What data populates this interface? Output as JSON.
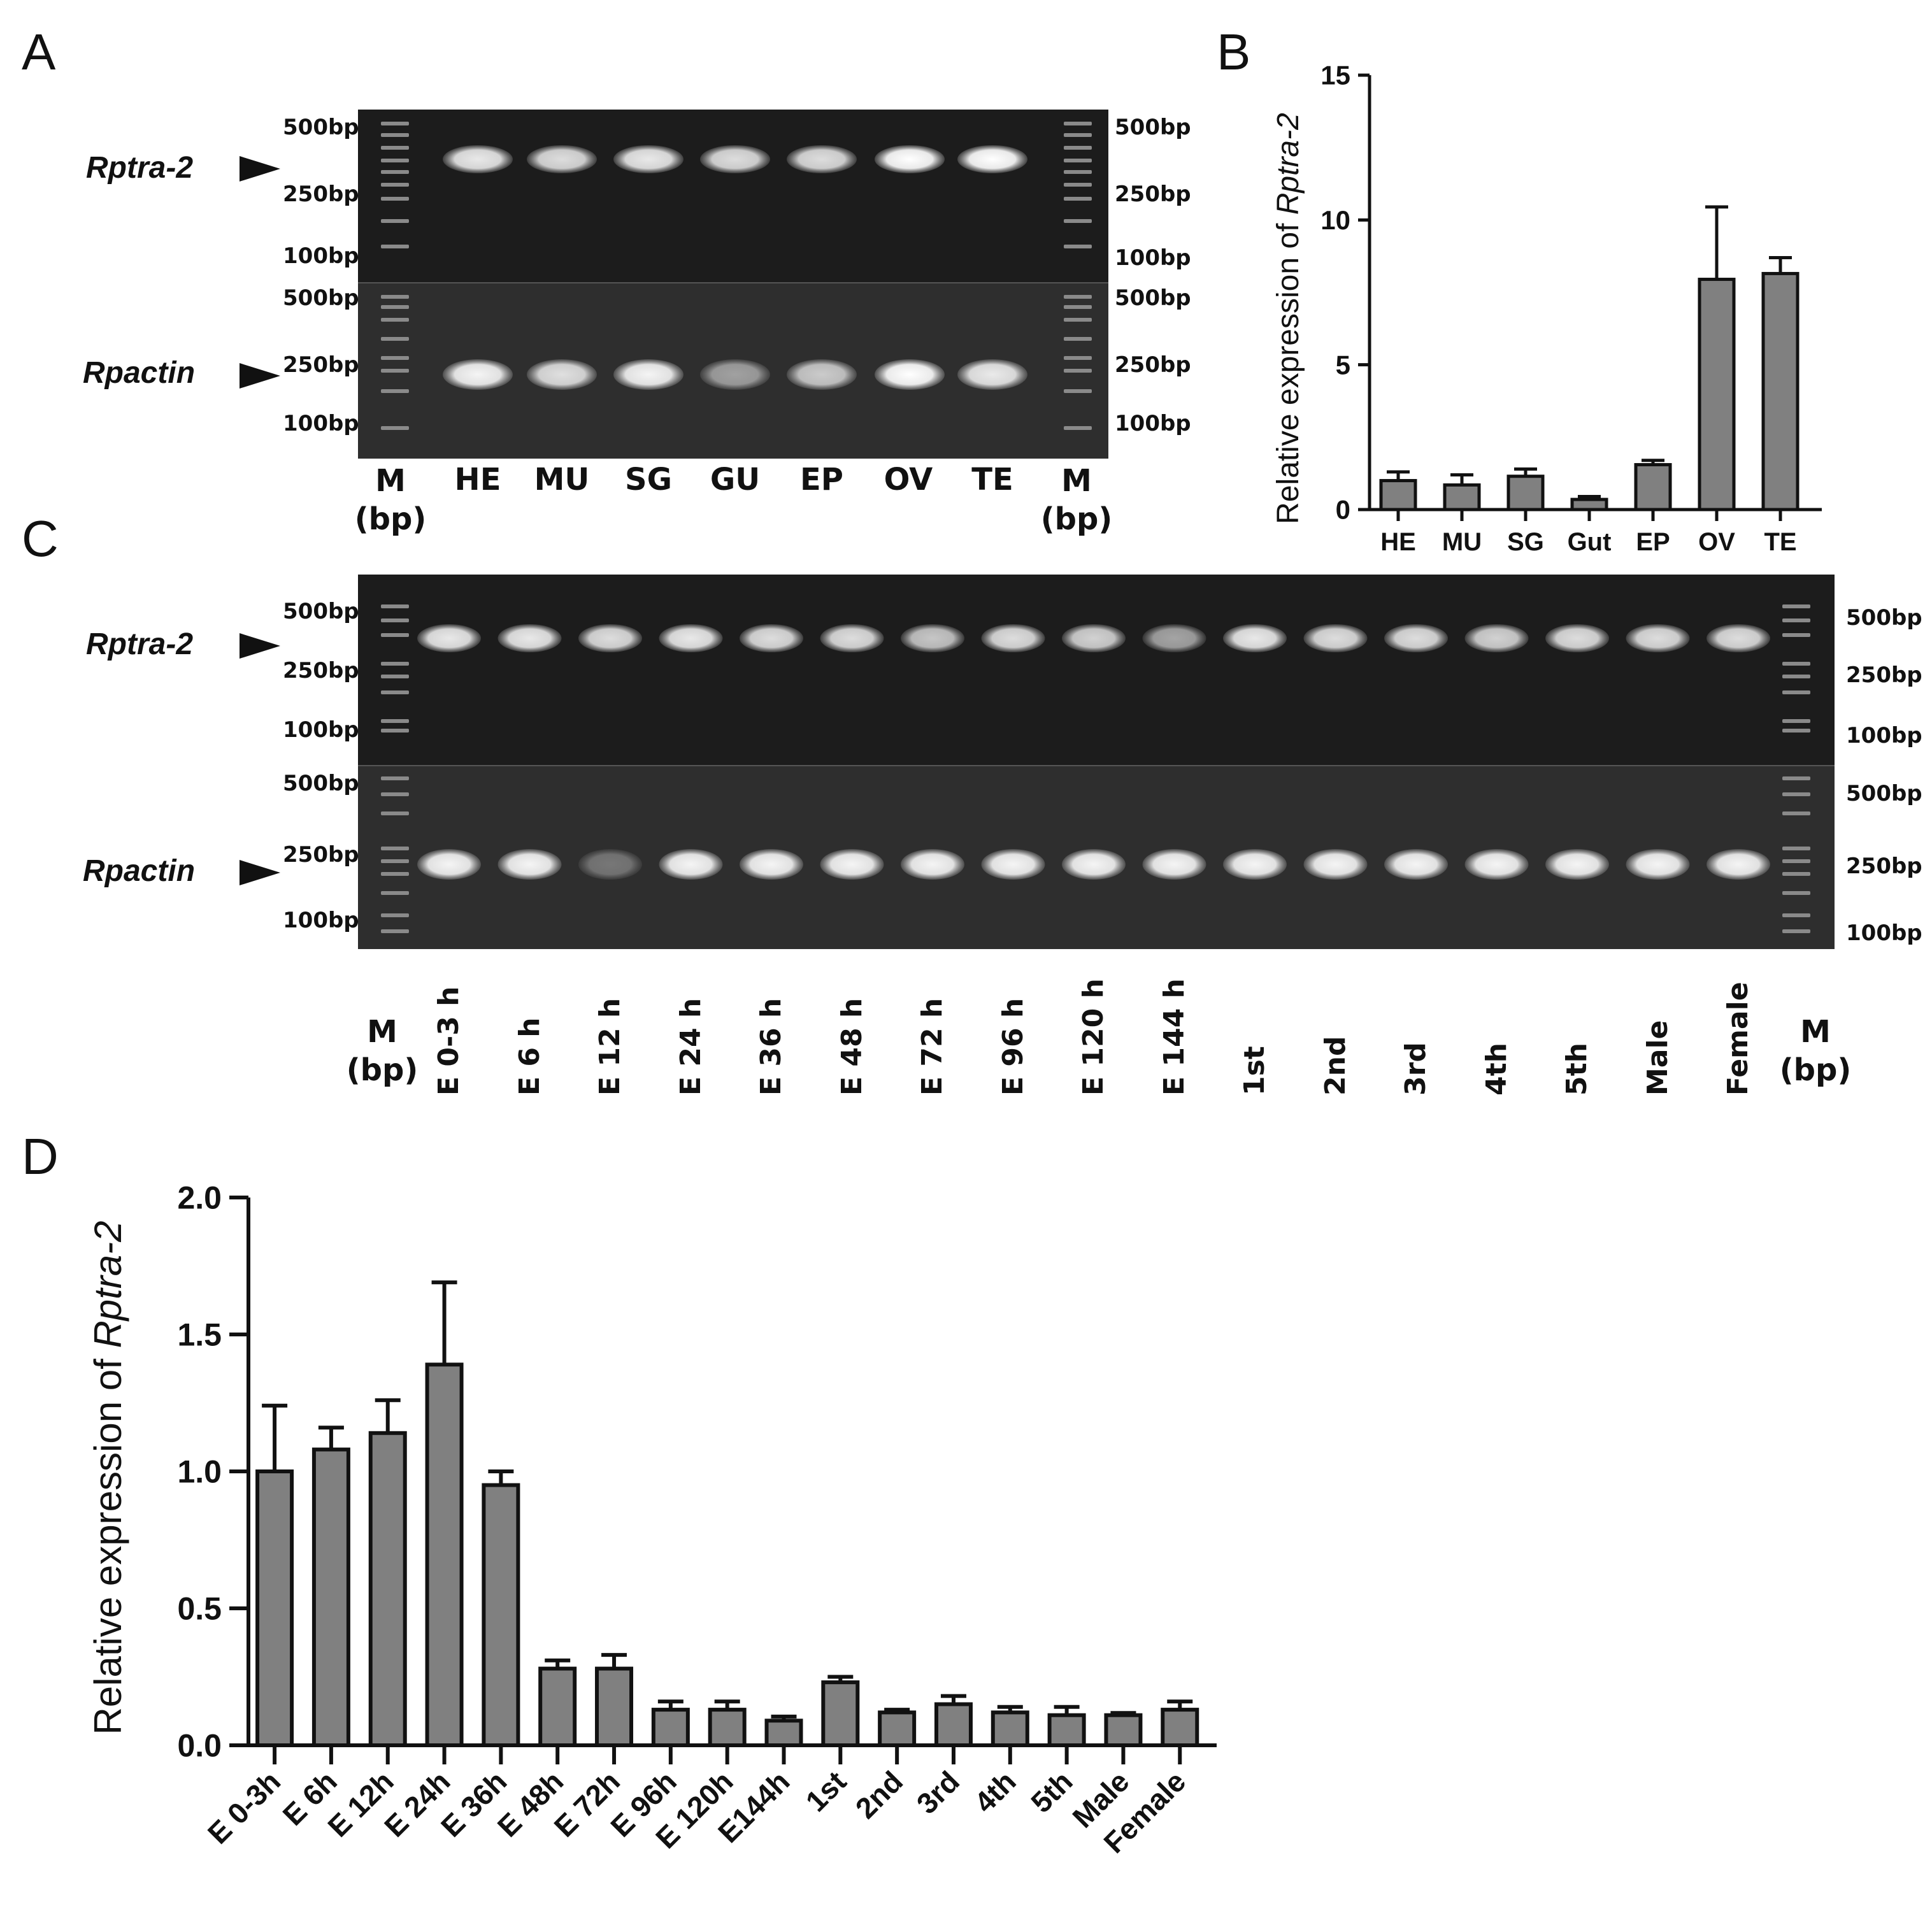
{
  "panels": {
    "A": "A",
    "B": "B",
    "C": "C",
    "D": "D"
  },
  "genes": {
    "target": "Rptra-2",
    "reference": "Rpactin"
  },
  "ladder_labels": {
    "bp500": "500bp",
    "bp250": "250bp",
    "bp100": "100bp"
  },
  "marker": {
    "label": "M",
    "unit": "(bp)"
  },
  "gel_A": {
    "lanes": [
      "HE",
      "MU",
      "SG",
      "GU",
      "EP",
      "OV",
      "TE"
    ],
    "target_intensity": [
      0.9,
      0.85,
      0.9,
      0.85,
      0.85,
      1.0,
      1.0
    ],
    "reference_intensity": [
      0.95,
      0.85,
      0.95,
      0.55,
      0.75,
      1.0,
      0.9
    ]
  },
  "gel_C": {
    "lanes": [
      "E 0-3 h",
      "E 6 h",
      "E 12 h",
      "E 24 h",
      "E 36 h",
      "E 48 h",
      "E 72 h",
      "E 96 h",
      "E 120 h",
      "E 144 h",
      "1st",
      "2nd",
      "3rd",
      "4th",
      "5th",
      "Male",
      "Female"
    ],
    "target_intensity": [
      0.9,
      0.9,
      0.85,
      0.9,
      0.85,
      0.85,
      0.75,
      0.85,
      0.8,
      0.6,
      0.9,
      0.85,
      0.85,
      0.8,
      0.85,
      0.85,
      0.85
    ],
    "reference_intensity": [
      0.95,
      0.95,
      0.35,
      0.95,
      0.95,
      0.95,
      0.95,
      0.95,
      0.95,
      0.95,
      0.95,
      0.95,
      0.95,
      0.95,
      0.95,
      0.95,
      0.95
    ]
  },
  "chart_data": [
    {
      "panel": "B",
      "type": "bar",
      "ylabel_prefix": "Relative expression of ",
      "ylabel_gene": "Rptra-2",
      "categories": [
        "HE",
        "MU",
        "SG",
        "Gut",
        "EP",
        "OV",
        "TE"
      ],
      "values": [
        1.0,
        0.85,
        1.15,
        0.35,
        1.55,
        7.95,
        8.15
      ],
      "errors": [
        0.3,
        0.35,
        0.25,
        0.1,
        0.15,
        2.5,
        0.55
      ],
      "ylim": [
        0,
        15
      ],
      "yticks": [
        0,
        5,
        10,
        15
      ],
      "ytick_labels": [
        "0",
        "5",
        "10",
        "15"
      ],
      "bar_color": "#808080"
    },
    {
      "panel": "D",
      "type": "bar",
      "ylabel_prefix": "Relative expression of ",
      "ylabel_gene": "Rptra-2",
      "categories": [
        "E 0-3h",
        "E 6h",
        "E 12h",
        "E 24h",
        "E 36h",
        "E 48h",
        "E 72h",
        "E 96h",
        "E 120h",
        "E144h",
        "1st",
        "2nd",
        "3rd",
        "4th",
        "5th",
        "Male",
        "Female"
      ],
      "values": [
        1.0,
        1.08,
        1.14,
        1.39,
        0.95,
        0.28,
        0.28,
        0.13,
        0.13,
        0.09,
        0.23,
        0.12,
        0.15,
        0.12,
        0.11,
        0.11,
        0.13
      ],
      "errors": [
        0.24,
        0.08,
        0.12,
        0.3,
        0.05,
        0.03,
        0.05,
        0.03,
        0.03,
        0.015,
        0.02,
        0.01,
        0.03,
        0.02,
        0.03,
        0.008,
        0.03
      ],
      "ylim": [
        0,
        2.0
      ],
      "yticks": [
        0,
        0.5,
        1.0,
        1.5,
        2.0
      ],
      "ytick_labels": [
        "0.0",
        "0.5",
        "1.0",
        "1.5",
        "2.0"
      ],
      "bar_color": "#808080"
    }
  ]
}
